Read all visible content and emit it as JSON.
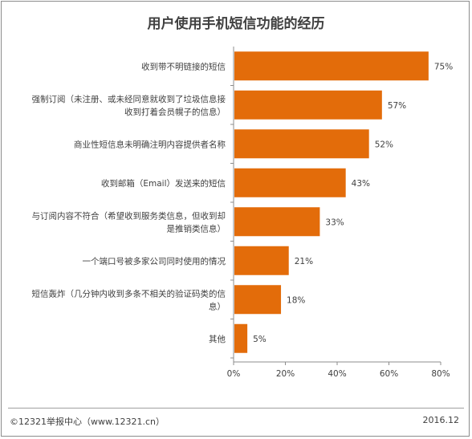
{
  "chart_data": {
    "type": "bar",
    "orientation": "horizontal",
    "title": "用户使用手机短信功能的经历",
    "categories": [
      [
        "收到带不明链接的短信"
      ],
      [
        "强制订阅（未注册、或未经同意就收到了垃圾信息接",
        "收到打着会员幌子的信息）"
      ],
      [
        "商业性短信息未明确注明内容提供者名称"
      ],
      [
        "收到邮箱（Email）发送来的短信"
      ],
      [
        "与订阅内容不符合（希望收到服务类信息，但收到却",
        "是推销类信息）"
      ],
      [
        "一个端口号被多家公司同时使用的情况"
      ],
      [
        "短信轰炸（几分钟内收到多条不相关的验证码类的信",
        "息）"
      ],
      [
        "其他"
      ]
    ],
    "values": [
      75,
      57,
      52,
      43,
      33,
      21,
      18,
      5
    ],
    "value_labels": [
      "75%",
      "57%",
      "52%",
      "43%",
      "33%",
      "21%",
      "18%",
      "5%"
    ],
    "xlim": [
      0,
      80
    ],
    "xticks": [
      "0%",
      "20%",
      "40%",
      "60%",
      "80%"
    ],
    "grid": false,
    "bar_color": "#E36C0A"
  },
  "footer": {
    "source": "©12321举报中心（www.12321.cn）",
    "date": "2016.12"
  }
}
